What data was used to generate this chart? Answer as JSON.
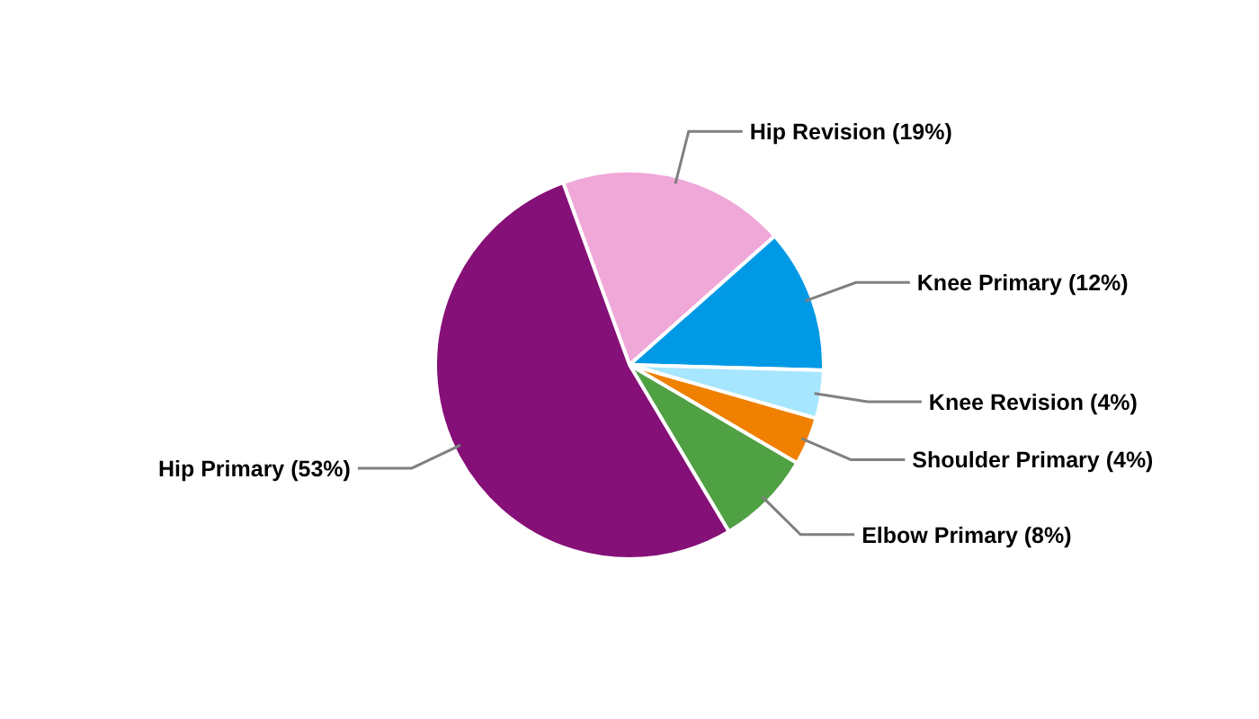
{
  "chart_data": {
    "type": "pie",
    "categories": [
      "Hip Revision (19%)",
      "Knee Primary (12%)",
      "Knee Revision (4%)",
      "Shoulder Primary (4%)",
      "Elbow Primary (8%)",
      "Hip Primary (53%)"
    ],
    "values": [
      19,
      12,
      4,
      4,
      8,
      53
    ],
    "colors": [
      "#f0a8d8",
      "#0099e6",
      "#a6e6ff",
      "#f08000",
      "#50a044",
      "#851077"
    ],
    "legend": false
  }
}
